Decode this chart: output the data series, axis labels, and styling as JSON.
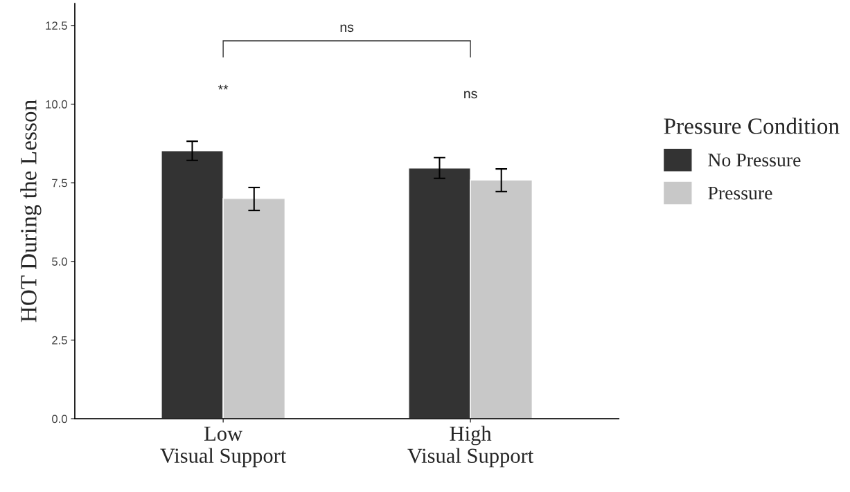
{
  "chart_data": {
    "type": "bar",
    "ylabel": "HOT During the Lesson",
    "legend_title": "Pressure Condition",
    "categories": [
      "Low\nVisual Support",
      "High\nVisual Support"
    ],
    "series": [
      {
        "name": "No Pressure",
        "color": "#333333",
        "values": [
          8.52,
          7.97
        ],
        "errors": [
          [
            8.21,
            8.82
          ],
          [
            7.64,
            8.3
          ]
        ]
      },
      {
        "name": "Pressure",
        "color": "#c8c8c8",
        "values": [
          7.0,
          7.59
        ],
        "errors": [
          [
            6.62,
            7.35
          ],
          [
            7.22,
            7.94
          ]
        ]
      }
    ],
    "ylim": [
      0,
      13.2
    ],
    "yticks": [
      {
        "value": 0,
        "label": "0.0"
      },
      {
        "value": 2.5,
        "label": "2.5"
      },
      {
        "value": 5,
        "label": "5.0"
      },
      {
        "value": 7.5,
        "label": "7.5"
      },
      {
        "value": 10,
        "label": "10.0"
      },
      {
        "value": 12.5,
        "label": "12.5"
      }
    ],
    "grid": false,
    "legend": "right",
    "annotations": [
      "**",
      "ns",
      "ns"
    ]
  }
}
